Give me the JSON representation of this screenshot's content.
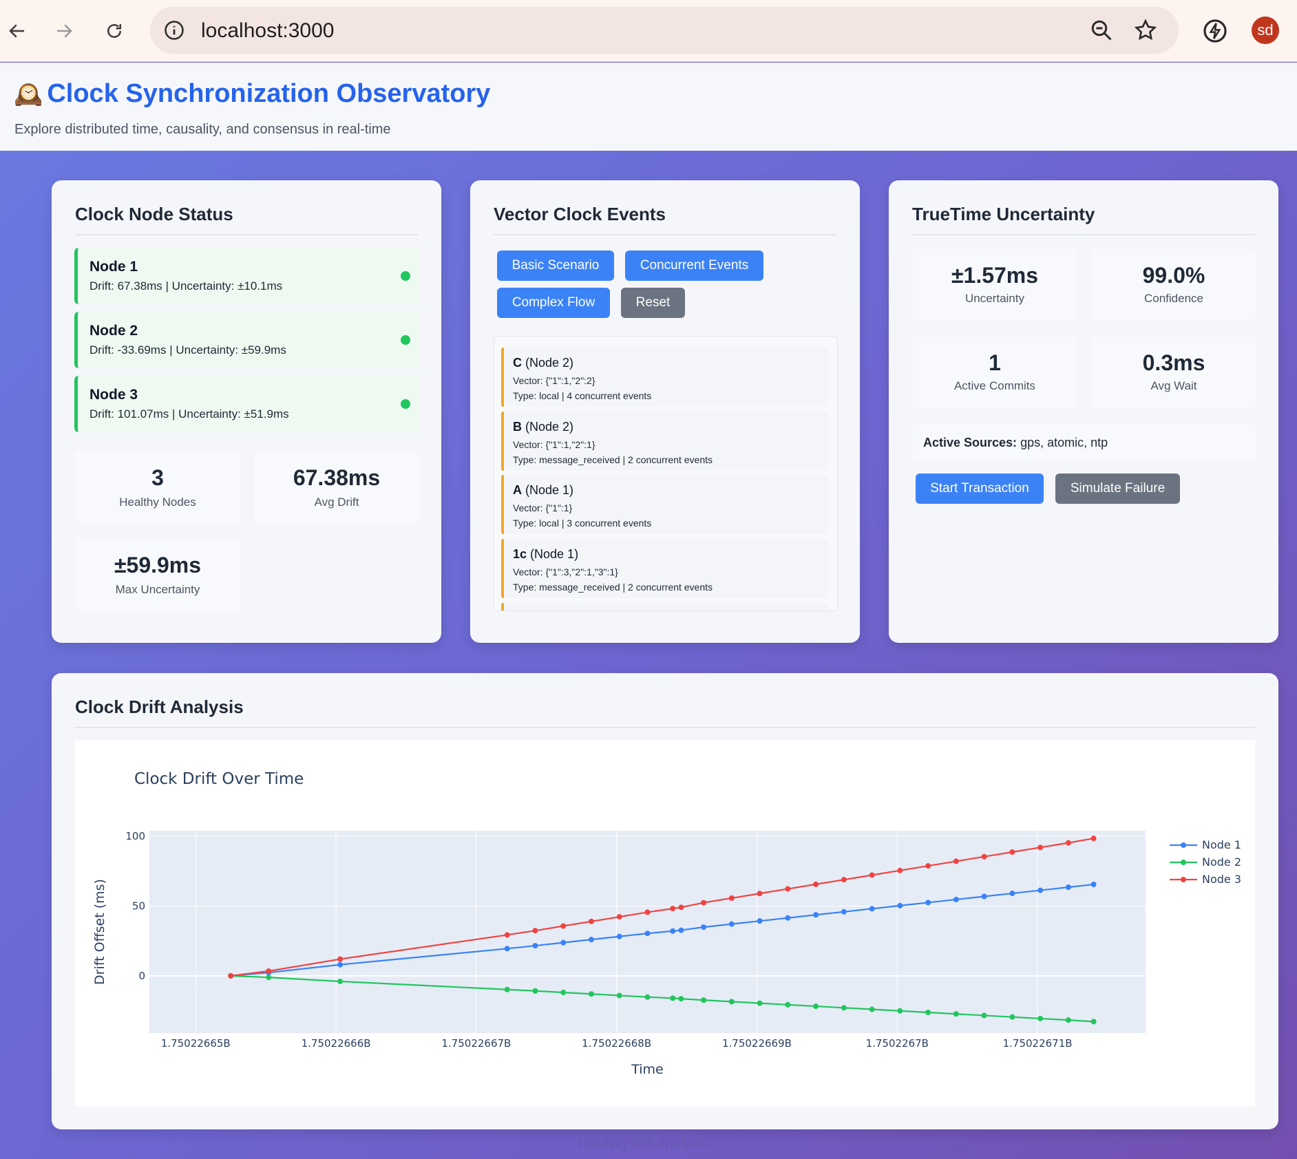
{
  "browser": {
    "url": "localhost:3000",
    "avatar_initials": "sd"
  },
  "header": {
    "icon": "mantelpiece-clock-icon",
    "icon_glyph": "🕰️",
    "title": "Clock Synchronization Observatory",
    "subtitle": "Explore distributed time, causality, and consensus in real-time"
  },
  "node_status": {
    "title": "Clock Node Status",
    "nodes": [
      {
        "name": "Node 1",
        "info": "Drift: 67.38ms | Uncertainty: ±10.1ms"
      },
      {
        "name": "Node 2",
        "info": "Drift: -33.69ms | Uncertainty: ±59.9ms"
      },
      {
        "name": "Node 3",
        "info": "Drift: 101.07ms | Uncertainty: ±51.9ms"
      }
    ],
    "stats": [
      {
        "value": "3",
        "label": "Healthy Nodes"
      },
      {
        "value": "67.38ms",
        "label": "Avg Drift"
      },
      {
        "value": "±59.9ms",
        "label": "Max Uncertainty"
      }
    ]
  },
  "vector_clock": {
    "title": "Vector Clock Events",
    "buttons": {
      "basic": "Basic Scenario",
      "concurrent": "Concurrent Events",
      "complex": "Complex Flow",
      "reset": "Reset"
    },
    "events": [
      {
        "id": "C",
        "node": " (Node 2)",
        "vector": "Vector: {\"1\":1,\"2\":2}",
        "type": "Type: local | 4 concurrent events"
      },
      {
        "id": "B",
        "node": " (Node 2)",
        "vector": "Vector: {\"1\":1,\"2\":1}",
        "type": "Type: message_received | 2 concurrent events"
      },
      {
        "id": "A",
        "node": " (Node 1)",
        "vector": "Vector: {\"1\":1}",
        "type": "Type: local | 3 concurrent events"
      },
      {
        "id": "1c",
        "node": " (Node 1)",
        "vector": "Vector: {\"1\":3,\"2\":1,\"3\":1}",
        "type": "Type: message_received | 2 concurrent events"
      }
    ]
  },
  "truetime": {
    "title": "TrueTime Uncertainty",
    "stats": [
      {
        "value": "±1.57ms",
        "label": "Uncertainty"
      },
      {
        "value": "99.0%",
        "label": "Confidence"
      },
      {
        "value": "1",
        "label": "Active Commits"
      },
      {
        "value": "0.3ms",
        "label": "Avg Wait"
      }
    ],
    "sources_label": "Active Sources:",
    "sources_value": " gps, atomic, ntp",
    "buttons": {
      "start": "Start Transaction",
      "fail": "Simulate Failure"
    }
  },
  "drift": {
    "title": "Clock Drift Analysis",
    "loading": "Loading drift analysis..."
  },
  "chart_data": {
    "type": "line",
    "title": "Clock Drift Over Time",
    "xlabel": "Time",
    "ylabel": "Drift Offset (ms)",
    "xlim": [
      1750226646.7,
      1750226717.7
    ],
    "ylim": [
      -41,
      104
    ],
    "x_ticks": [
      1750226650,
      1750226660,
      1750226670,
      1750226680,
      1750226690,
      1750226700,
      1750226710
    ],
    "x_tick_labels": [
      "1.75022665B",
      "1.75022666B",
      "1.75022667B",
      "1.75022668B",
      "1.75022669B",
      "1.7502267B",
      "1.75022671B"
    ],
    "y_ticks": [
      0,
      50,
      100
    ],
    "y_tick_labels": [
      "0",
      "50",
      "100"
    ],
    "grid": true,
    "legend": "right",
    "x": [
      1750226652.5,
      1750226655.2,
      1750226660.3,
      1750226672.2,
      1750226674.2,
      1750226676.2,
      1750226678.2,
      1750226680.2,
      1750226682.2,
      1750226684.0,
      1750226684.6,
      1750226686.2,
      1750226688.2,
      1750226690.2,
      1750226692.2,
      1750226694.2,
      1750226696.2,
      1750226698.2,
      1750226700.2,
      1750226702.2,
      1750226704.2,
      1750226706.2,
      1750226708.2,
      1750226710.2,
      1750226712.2,
      1750226714.0
    ],
    "series": [
      {
        "name": "Node 1",
        "color": "#3b82f6",
        "values": [
          0,
          2.3,
          8,
          19.5,
          21.6,
          23.8,
          26,
          28.2,
          30.4,
          32.1,
          32.7,
          34.9,
          37.1,
          39.3,
          41.5,
          43.7,
          45.9,
          48.1,
          50.3,
          52.5,
          54.7,
          56.9,
          59.1,
          61.3,
          63.5,
          65.5
        ]
      },
      {
        "name": "Node 2",
        "color": "#22c55e",
        "values": [
          0,
          -1.1,
          -4,
          -9.8,
          -10.8,
          -11.9,
          -13,
          -14.1,
          -15.2,
          -16.0,
          -16.4,
          -17.4,
          -18.5,
          -19.6,
          -20.7,
          -21.8,
          -22.9,
          -24.0,
          -25.1,
          -26.2,
          -27.3,
          -28.4,
          -29.5,
          -30.6,
          -31.7,
          -32.8
        ]
      },
      {
        "name": "Node 3",
        "color": "#ef4444",
        "values": [
          0,
          3.4,
          12,
          29.3,
          32.4,
          35.7,
          39,
          42.3,
          45.6,
          48.2,
          49.1,
          52.4,
          55.7,
          59.0,
          62.3,
          65.6,
          68.9,
          72.2,
          75.5,
          78.8,
          82.1,
          85.4,
          88.7,
          92.0,
          95.3,
          98.5
        ]
      }
    ]
  }
}
